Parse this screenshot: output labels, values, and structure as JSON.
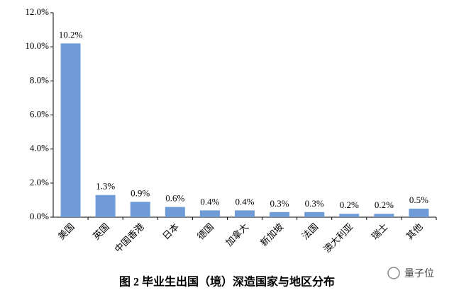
{
  "chart_data": {
    "type": "bar",
    "title": "图 2 毕业生出国（境）深造国家与地区分布",
    "watermark": "量子位",
    "categories": [
      "美国",
      "英国",
      "中国香港",
      "日本",
      "德国",
      "加拿大",
      "新加坡",
      "法国",
      "澳大利亚",
      "瑞士",
      "其他"
    ],
    "values": [
      10.2,
      1.3,
      0.9,
      0.6,
      0.4,
      0.4,
      0.3,
      0.3,
      0.2,
      0.2,
      0.5
    ],
    "value_labels": [
      "10.2%",
      "1.3%",
      "0.9%",
      "0.6%",
      "0.4%",
      "0.4%",
      "0.3%",
      "0.3%",
      "0.2%",
      "0.2%",
      "0.5%"
    ],
    "color": "#6f9bd6",
    "ylim": [
      0,
      12
    ],
    "yticks": [
      {
        "value": 0,
        "label": "0.0%"
      },
      {
        "value": 2,
        "label": "2.0%"
      },
      {
        "value": 4,
        "label": "4.0%"
      },
      {
        "value": 6,
        "label": "6.0%"
      },
      {
        "value": 8,
        "label": "8.0%"
      },
      {
        "value": 10,
        "label": "10.0%"
      },
      {
        "value": 12,
        "label": "12.0%"
      }
    ],
    "grid": false
  }
}
